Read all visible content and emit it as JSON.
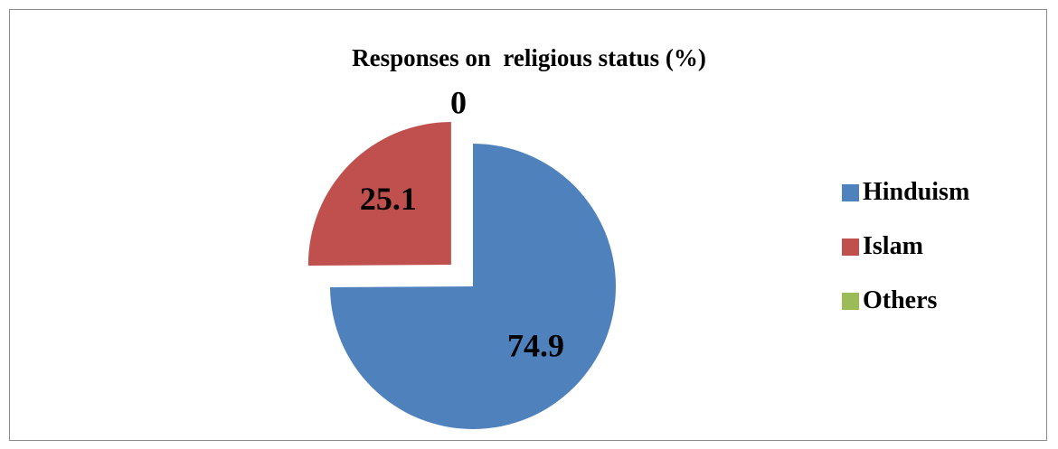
{
  "chart_data": {
    "type": "pie",
    "title": "Responses on  religious status (%)",
    "categories": [
      "Hinduism",
      "Islam",
      "Others"
    ],
    "values": [
      74.9,
      25.1,
      0
    ],
    "data_labels": [
      "74.9",
      "25.1",
      "0"
    ],
    "colors": [
      "#4f81bd",
      "#c0504d",
      "#9bbb59"
    ],
    "legend_position": "right",
    "exploded": "Islam"
  }
}
